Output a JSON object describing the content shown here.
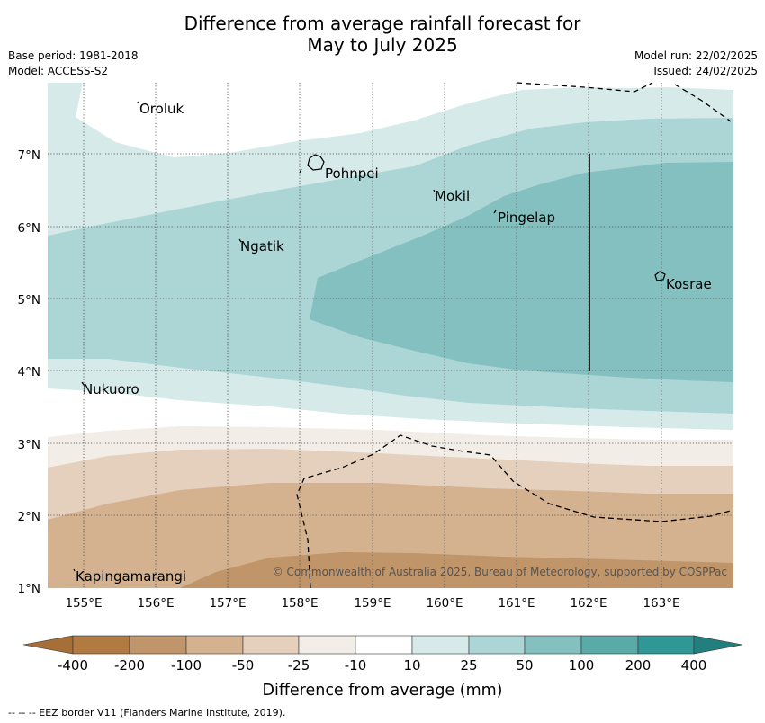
{
  "title_line1": "Difference from average rainfall forecast for",
  "title_line2": "May to July 2025",
  "meta_left": [
    "Base period: 1981-2018",
    "Model: ACCESS-S2"
  ],
  "meta_right": [
    "Model run: 22/02/2025",
    "Issued: 24/02/2025"
  ],
  "map": {
    "lat_labels": [
      "7°N",
      "6°N",
      "5°N",
      "4°N",
      "3°N",
      "2°N",
      "1°N"
    ],
    "lon_labels": [
      "155°E",
      "156°E",
      "157°E",
      "158°E",
      "159°E",
      "160°E",
      "161°E",
      "162°E",
      "163°E"
    ],
    "places": [
      {
        "name": "Oroluk"
      },
      {
        "name": "Pohnpei"
      },
      {
        "name": "Mokil"
      },
      {
        "name": "Pingelap"
      },
      {
        "name": "Ngatik"
      },
      {
        "name": "Kosrae"
      },
      {
        "name": "Nukuoro"
      },
      {
        "name": "Kapingamarangi"
      }
    ],
    "copyright": "© Commonwealth of Australia 2025, Bureau of Meteorology, supported by COSPPac"
  },
  "legend": {
    "ticks": [
      "-400",
      "-200",
      "-100",
      "-50",
      "-25",
      "-10",
      "10",
      "25",
      "50",
      "100",
      "200",
      "400"
    ],
    "colors": [
      "#b07a40",
      "#c0956a",
      "#d4b290",
      "#e4d0bd",
      "#f3ede7",
      "#ffffff",
      "#d6eae9",
      "#acd6d5",
      "#84c0bf",
      "#5aaaa8",
      "#2f9897",
      "#237f7d"
    ],
    "label": "Difference from average (mm)"
  },
  "footnote": "-- -- -- EEZ border V11 (Flanders Marine Institute, 2019)."
}
